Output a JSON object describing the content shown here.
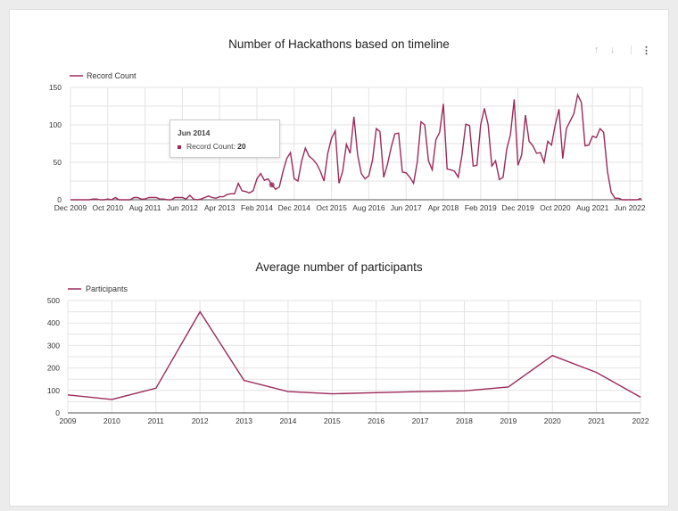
{
  "colors": {
    "series": "#9c2a5c",
    "grid": "#e3e3e3",
    "axis": "#555"
  },
  "toolbar": {
    "icons": [
      "arrow-up-icon",
      "arrow-down-icon",
      "more-vert-icon"
    ],
    "up": "↑",
    "down": "↓",
    "more": "⋮"
  },
  "chart_data": [
    {
      "type": "line",
      "title": "Number of Hackathons based on timeline",
      "legend": "top-left",
      "grid": true,
      "series": [
        {
          "name": "Record Count"
        }
      ],
      "x_start": "Dec 2009",
      "x_interval": "month",
      "x_ticks": [
        "Dec 2009",
        "Oct 2010",
        "Aug 2011",
        "Jun 2012",
        "Apr 2013",
        "Feb 2014",
        "Dec 2014",
        "Oct 2015",
        "Aug 2016",
        "Jun 2017",
        "Apr 2018",
        "Feb 2019",
        "Dec 2019",
        "Oct 2020",
        "Aug 2021",
        "Jun 2022"
      ],
      "y_ticks": [
        0,
        50,
        100,
        150
      ],
      "ylim": [
        0,
        150
      ],
      "values": [
        0,
        0,
        0,
        0,
        0,
        0,
        1,
        1,
        0,
        0,
        1,
        0,
        3,
        0,
        0,
        0,
        0,
        3,
        3,
        1,
        1,
        3,
        3,
        3,
        1,
        1,
        0,
        0,
        3,
        3,
        3,
        1,
        6,
        1,
        0,
        1,
        3,
        5,
        3,
        2,
        4,
        4,
        7,
        8,
        8,
        22,
        12,
        11,
        9,
        12,
        28,
        35,
        26,
        28,
        20,
        14,
        17,
        38,
        55,
        63,
        28,
        25,
        52,
        69,
        58,
        54,
        48,
        38,
        25,
        62,
        82,
        92,
        22,
        38,
        74,
        62,
        111,
        60,
        35,
        28,
        32,
        53,
        95,
        91,
        30,
        47,
        70,
        88,
        89,
        37,
        36,
        30,
        22,
        50,
        104,
        100,
        52,
        40,
        80,
        90,
        128,
        41,
        40,
        38,
        30,
        60,
        101,
        99,
        45,
        46,
        100,
        122,
        100,
        45,
        52,
        27,
        30,
        68,
        87,
        134,
        46,
        60,
        113,
        78,
        72,
        62,
        63,
        50,
        78,
        73,
        100,
        121,
        55,
        95,
        105,
        115,
        140,
        130,
        72,
        73,
        85,
        83,
        95,
        90,
        38,
        10,
        2,
        2,
        0,
        0,
        0,
        0,
        0,
        2
      ],
      "tooltip": {
        "date": "Jun 2014",
        "label": "Record Count: ",
        "value": "20"
      }
    },
    {
      "type": "line",
      "title": "Average number of participants",
      "legend": "top-left",
      "grid": true,
      "series": [
        {
          "name": "Participants",
          "values": [
            80,
            60,
            110,
            450,
            145,
            95,
            85,
            90,
            95,
            98,
            115,
            255,
            180,
            70
          ]
        }
      ],
      "categories": [
        "2009",
        "2010",
        "2011",
        "2012",
        "2013",
        "2014",
        "2015",
        "2016",
        "2017",
        "2018",
        "2019",
        "2020",
        "2021",
        "2022"
      ],
      "y_ticks": [
        0,
        100,
        200,
        300,
        400,
        500
      ],
      "ylim": [
        0,
        500
      ]
    }
  ]
}
